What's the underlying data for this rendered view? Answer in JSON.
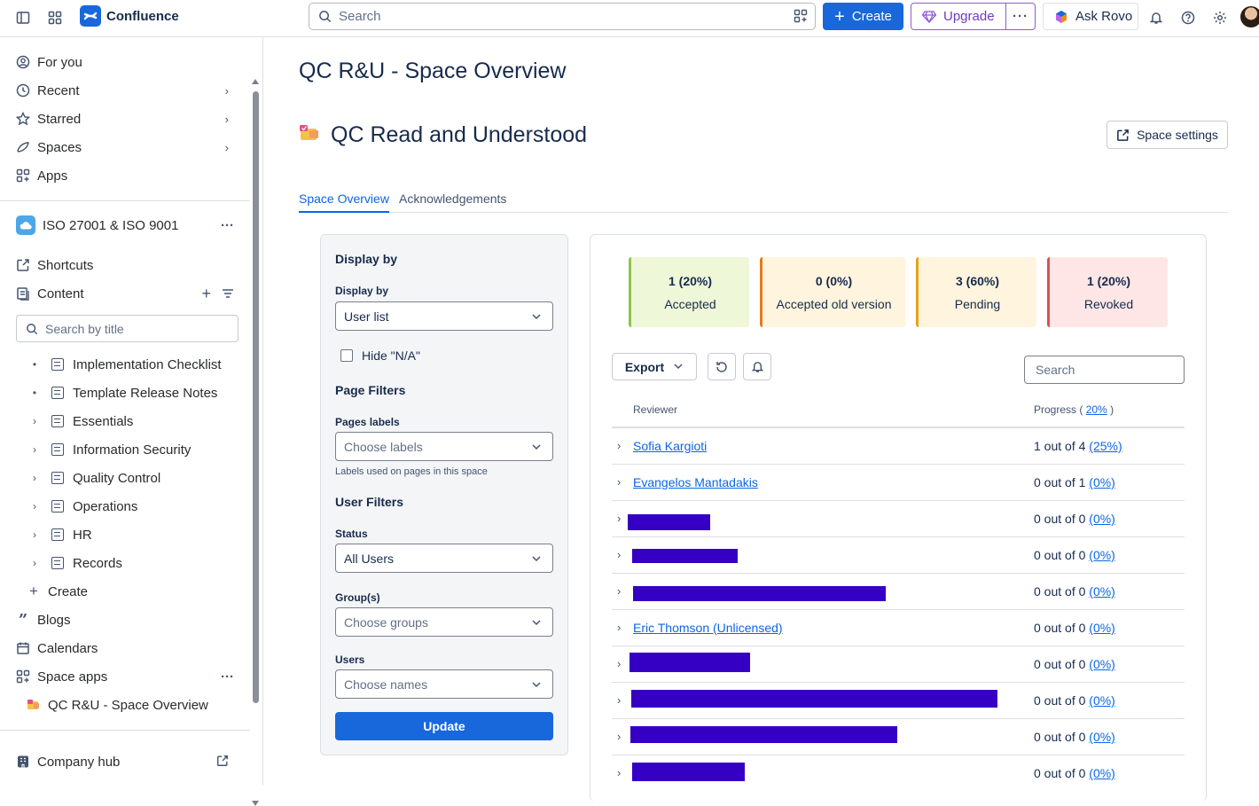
{
  "topbar": {
    "app_name": "Confluence",
    "search_placeholder": "Search",
    "create_label": "Create",
    "upgrade_label": "Upgrade",
    "rovo_label": "Ask Rovo",
    "icons": [
      "sidebar-toggle-icon",
      "app-switcher-icon",
      "confluence-logo-icon",
      "search-icon",
      "filter-icon",
      "plus-icon",
      "gem-icon",
      "more-icon",
      "rovo-icon",
      "bell-icon",
      "help-icon",
      "gear-icon",
      "avatar"
    ]
  },
  "sidebar": {
    "nav": [
      {
        "label": "For you"
      },
      {
        "label": "Recent"
      },
      {
        "label": "Starred"
      },
      {
        "label": "Spaces"
      },
      {
        "label": "Apps"
      }
    ],
    "space_name": "ISO 27001 & ISO 9001",
    "shortcuts_label": "Shortcuts",
    "content_label": "Content",
    "search_placeholder": "Search by title",
    "tree": [
      {
        "label": "Implementation Checklist"
      },
      {
        "label": "Template Release Notes"
      },
      {
        "label": "Essentials"
      },
      {
        "label": "Information Security"
      },
      {
        "label": "Quality Control"
      },
      {
        "label": "Operations"
      },
      {
        "label": "HR"
      },
      {
        "label": "Records"
      }
    ],
    "create_label": "Create",
    "blogs_label": "Blogs",
    "calendars_label": "Calendars",
    "space_apps_label": "Space apps",
    "space_app_item": "QC R&U - Space Overview",
    "company_hub_label": "Company hub"
  },
  "page": {
    "title": "QC R&U - Space Overview",
    "subtitle": "QC Read and Understood",
    "space_settings_label": "Space settings",
    "tabs": [
      {
        "label": "Space Overview",
        "active": true
      },
      {
        "label": "Acknowledgements",
        "active": false
      }
    ]
  },
  "filters": {
    "display_by_heading": "Display by",
    "display_by_label": "Display by",
    "display_by_value": "User list",
    "hide_na_label": "Hide \"N/A\"",
    "hide_na_checked": false,
    "page_filters_heading": "Page Filters",
    "pages_labels_label": "Pages labels",
    "pages_labels_placeholder": "Choose labels",
    "pages_labels_help": "Labels used on pages in this space",
    "user_filters_heading": "User Filters",
    "status_label": "Status",
    "status_value": "All Users",
    "groups_label": "Group(s)",
    "groups_placeholder": "Choose groups",
    "users_label": "Users",
    "users_placeholder": "Choose names",
    "update_label": "Update"
  },
  "summary": [
    {
      "count": "1 (20%)",
      "label": "Accepted",
      "color": "#8ec34c"
    },
    {
      "count": "0 (0%)",
      "label": "Accepted old version",
      "color": "#e57c1b"
    },
    {
      "count": "3 (60%)",
      "label": "Pending",
      "color": "#e5a11b"
    },
    {
      "count": "1 (20%)",
      "label": "Revoked",
      "color": "#e04f4f"
    }
  ],
  "toolbar": {
    "export_label": "Export",
    "search_placeholder": "Search"
  },
  "table": {
    "col_reviewer": "Reviewer",
    "col_progress": "Progress (",
    "col_progress_link": "20%",
    "col_progress_end": ")",
    "rows": [
      {
        "name": "Sofia Kargioti",
        "progress": "1 out of 4",
        "pct": "(25%)"
      },
      {
        "name": "Evangelos Mantadakis",
        "progress": "0 out of 1",
        "pct": "(0%)"
      },
      {
        "name": "",
        "progress": "0 out of 0",
        "pct": "(0%)"
      },
      {
        "name": "",
        "progress": "0 out of 0",
        "pct": "(0%)"
      },
      {
        "name": "",
        "progress": "0 out of 0",
        "pct": "(0%)"
      },
      {
        "name": "Eric Thomson (Unlicensed)",
        "progress": "0 out of 0",
        "pct": "(0%)"
      },
      {
        "name": "",
        "progress": "0 out of 0",
        "pct": "(0%)"
      },
      {
        "name": "",
        "progress": "0 out of 0",
        "pct": "(0%)"
      },
      {
        "name": "",
        "progress": "0 out of 0",
        "pct": "(0%)"
      },
      {
        "name": "",
        "progress": "0 out of 0",
        "pct": "(0%)"
      }
    ]
  }
}
